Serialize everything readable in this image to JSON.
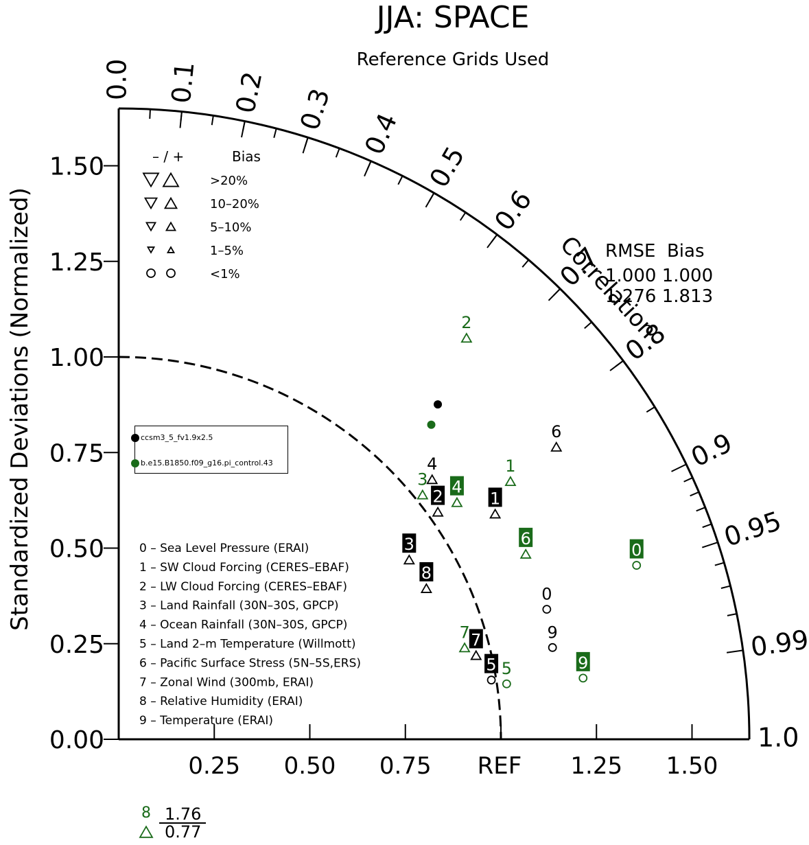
{
  "chart_data": {
    "type": "scatter",
    "title": "JJA: SPACE",
    "subtitle": "Reference Grids Used",
    "ylabel": "Standardized Deviations (Normalized)",
    "arc_label": "Correlation",
    "ref_label": "REF",
    "std_range": [
      0,
      1.65
    ],
    "y_ticks": [
      "0.00",
      "0.25",
      "0.50",
      "0.75",
      "1.00",
      "1.25",
      "1.50"
    ],
    "x_ticks": [
      "0.25",
      "0.50",
      "0.75",
      "1.25",
      "1.50"
    ],
    "correlation_ticks": [
      "0.0",
      "0.1",
      "0.2",
      "0.3",
      "0.4",
      "0.5",
      "0.6",
      "0.7",
      "0.8",
      "0.9",
      "0.95",
      "0.99",
      "1.0"
    ],
    "reference_circle": 1.0,
    "series": [
      {
        "name": "ccsm3_5_fv1.9x2.5",
        "color": "#000000",
        "points": [
          {
            "id": "0",
            "x": 1.12,
            "y": 0.34,
            "marker": "circle",
            "boxed": false
          },
          {
            "id": "1",
            "x": 0.985,
            "y": 0.59,
            "marker": "triangle-up",
            "boxed": true
          },
          {
            "id": "2",
            "x": 0.835,
            "y": 0.595,
            "marker": "triangle-up",
            "boxed": true
          },
          {
            "id": "3",
            "x": 0.76,
            "y": 0.47,
            "marker": "triangle-up",
            "boxed": true
          },
          {
            "id": "4",
            "x": 0.82,
            "y": 0.68,
            "marker": "triangle-up",
            "boxed": false
          },
          {
            "id": "5",
            "x": 0.975,
            "y": 0.155,
            "marker": "circle",
            "boxed": true
          },
          {
            "id": "6",
            "x": 1.145,
            "y": 0.765,
            "marker": "triangle-up",
            "boxed": false
          },
          {
            "id": "7",
            "x": 0.935,
            "y": 0.22,
            "marker": "triangle-up",
            "boxed": true
          },
          {
            "id": "8",
            "x": 0.805,
            "y": 0.395,
            "marker": "triangle-up",
            "boxed": true
          },
          {
            "id": "9",
            "x": 1.135,
            "y": 0.24,
            "marker": "circle",
            "boxed": false
          }
        ]
      },
      {
        "name": "b.e15.B1850.f09_g16.pi_control.43",
        "color": "#1a6b1a",
        "points": [
          {
            "id": "0",
            "x": 1.355,
            "y": 0.455,
            "marker": "circle",
            "boxed": true
          },
          {
            "id": "1",
            "x": 1.025,
            "y": 0.675,
            "marker": "triangle-up",
            "boxed": false
          },
          {
            "id": "2",
            "x": 0.91,
            "y": 1.05,
            "marker": "triangle-up",
            "boxed": false
          },
          {
            "id": "3",
            "x": 0.795,
            "y": 0.64,
            "marker": "triangle-up",
            "boxed": false
          },
          {
            "id": "4",
            "x": 0.885,
            "y": 0.62,
            "marker": "triangle-up",
            "boxed": true
          },
          {
            "id": "5",
            "x": 1.015,
            "y": 0.145,
            "marker": "circle",
            "boxed": false
          },
          {
            "id": "6",
            "x": 1.065,
            "y": 0.485,
            "marker": "triangle-up",
            "boxed": true
          },
          {
            "id": "7",
            "x": 0.905,
            "y": 0.24,
            "marker": "triangle-up",
            "boxed": false
          },
          {
            "id": "9",
            "x": 1.215,
            "y": 0.16,
            "marker": "circle",
            "boxed": true
          }
        ]
      }
    ],
    "reference_dots": [
      {
        "series": "ccsm3_5_fv1.9x2.5",
        "color": "#000000",
        "correlation": 0.69,
        "std": 1.21
      },
      {
        "series": "b.e15.B1850.f09_g16.pi_control.43",
        "color": "#1a6b1a",
        "correlation": 0.705,
        "std": 1.16
      }
    ],
    "rmse_bias_table": {
      "header": "RMSE  Bias",
      "rows": [
        "1.000 1.000",
        "1.276 1.813"
      ]
    },
    "bias_legend": {
      "header_signs": "– / +",
      "header_label": "Bias",
      "rows": [
        {
          "label": ">20%",
          "size": 22,
          "shape": "triangle"
        },
        {
          "label": "10–20%",
          "size": 17,
          "shape": "triangle"
        },
        {
          "label": "5–10%",
          "size": 13,
          "shape": "triangle"
        },
        {
          "label": "1–5%",
          "size": 9,
          "shape": "triangle"
        },
        {
          "label": "<1%",
          "size": 11,
          "shape": "circle"
        }
      ]
    },
    "variables": [
      "0 – Sea Level Pressure (ERAI)",
      "1 – SW Cloud Forcing (CERES–EBAF)",
      "2 – LW Cloud Forcing (CERES–EBAF)",
      "3 – Land Rainfall (30N–30S, GPCP)",
      "4 – Ocean Rainfall (30N–30S, GPCP)",
      "5 – Land 2–m Temperature (Willmott)",
      "6 – Pacific Surface Stress (5N–5S,ERS)",
      "7 – Zonal Wind (300mb, ERAI)",
      "8 – Relative Humidity (ERAI)",
      "9 – Temperature (ERAI)"
    ],
    "offscale": {
      "id": "8",
      "color": "#1a6b1a",
      "marker": "triangle-up",
      "numerator": "1.76",
      "denominator": "0.77"
    }
  },
  "colors": {
    "black": "#000000",
    "green": "#1a6b1a"
  }
}
